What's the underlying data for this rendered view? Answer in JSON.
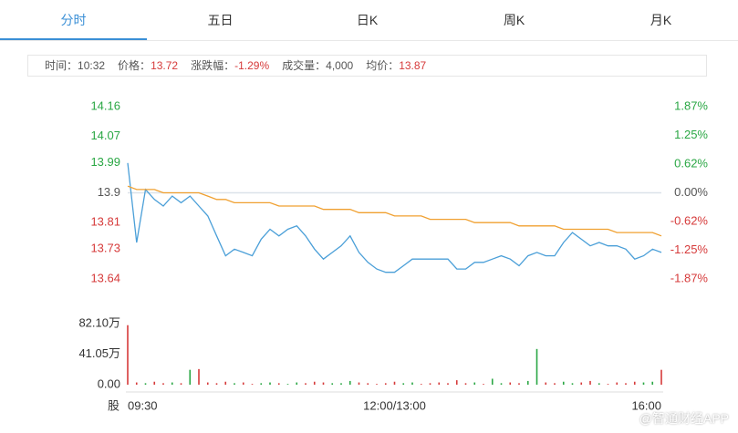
{
  "tabs": [
    "分时",
    "五日",
    "日K",
    "周K",
    "月K"
  ],
  "info": [
    {
      "label": "时间：",
      "value": "10:32"
    },
    {
      "label": "价格：",
      "value": "13.72"
    },
    {
      "label": "涨跌幅：",
      "value": "-1.29%"
    },
    {
      "label": "成交量：",
      "value": "4,000"
    },
    {
      "label": "均价：",
      "value": "13.87"
    }
  ],
  "watermark": "@智通财经APP",
  "chart_data": [
    {
      "type": "line",
      "xlim": [
        0,
        60
      ],
      "xticks": [
        {
          "value": 0,
          "label": "09:30"
        },
        {
          "value": 30,
          "label": "12:00/13:00"
        },
        {
          "value": 60,
          "label": "16:00"
        }
      ],
      "ylim": [
        13.64,
        14.16
      ],
      "yticks": [
        14.16,
        14.07,
        13.99,
        13.9,
        13.81,
        13.73,
        13.64
      ],
      "y2lim": [
        -1.87,
        1.87
      ],
      "y2ticks": [
        {
          "value": 1.87,
          "label": "1.87%"
        },
        {
          "value": 1.25,
          "label": "1.25%"
        },
        {
          "value": 0.62,
          "label": "0.62%"
        },
        {
          "value": 0,
          "label": "0.00%"
        },
        {
          "value": -0.62,
          "label": "-0.62%"
        },
        {
          "value": -1.25,
          "label": "-1.25%"
        },
        {
          "value": -1.87,
          "label": "-1.87%"
        }
      ],
      "up_color": "#2aa744",
      "down_color": "#d63a3a",
      "flat_color": "#555555",
      "series": [
        {
          "color": "#4a9fd8",
          "values": [
            13.99,
            13.75,
            13.91,
            13.88,
            13.86,
            13.89,
            13.87,
            13.89,
            13.86,
            13.83,
            13.77,
            13.71,
            13.73,
            13.72,
            13.71,
            13.76,
            13.79,
            13.77,
            13.79,
            13.8,
            13.77,
            13.73,
            13.7,
            13.72,
            13.74,
            13.77,
            13.72,
            13.69,
            13.67,
            13.66,
            13.66,
            13.68,
            13.7,
            13.7,
            13.7,
            13.7,
            13.7,
            13.67,
            13.67,
            13.69,
            13.69,
            13.7,
            13.71,
            13.7,
            13.68,
            13.71,
            13.72,
            13.71,
            13.71,
            13.75,
            13.78,
            13.76,
            13.74,
            13.75,
            13.74,
            13.74,
            13.73,
            13.7,
            13.71,
            13.73,
            13.72
          ]
        },
        {
          "color": "#f0a030",
          "values": [
            13.92,
            13.91,
            13.91,
            13.91,
            13.9,
            13.9,
            13.9,
            13.9,
            13.9,
            13.89,
            13.88,
            13.88,
            13.87,
            13.87,
            13.87,
            13.87,
            13.87,
            13.86,
            13.86,
            13.86,
            13.86,
            13.86,
            13.85,
            13.85,
            13.85,
            13.85,
            13.84,
            13.84,
            13.84,
            13.84,
            13.83,
            13.83,
            13.83,
            13.83,
            13.82,
            13.82,
            13.82,
            13.82,
            13.82,
            13.81,
            13.81,
            13.81,
            13.81,
            13.81,
            13.8,
            13.8,
            13.8,
            13.8,
            13.8,
            13.79,
            13.79,
            13.79,
            13.79,
            13.79,
            13.79,
            13.78,
            13.78,
            13.78,
            13.78,
            13.78,
            13.77
          ]
        }
      ]
    },
    {
      "type": "bar",
      "ylabel": "股",
      "ylim": [
        0,
        82.1
      ],
      "yticks": [
        {
          "value": 82.1,
          "label": "82.10万"
        },
        {
          "value": 41.05,
          "label": "41.05万"
        },
        {
          "value": 0,
          "label": "0.00"
        }
      ],
      "values": [
        80,
        3,
        2,
        4,
        2,
        3,
        2,
        20,
        21,
        3,
        2,
        4,
        2,
        3,
        1,
        2,
        3,
        2,
        1,
        3,
        2,
        4,
        3,
        2,
        2,
        5,
        3,
        2,
        1,
        2,
        4,
        2,
        3,
        1,
        2,
        3,
        2,
        6,
        2,
        3,
        1,
        8,
        2,
        3,
        2,
        5,
        48,
        3,
        2,
        4,
        2,
        3,
        5,
        2,
        1,
        3,
        2,
        4,
        3,
        4,
        20
      ]
    }
  ]
}
